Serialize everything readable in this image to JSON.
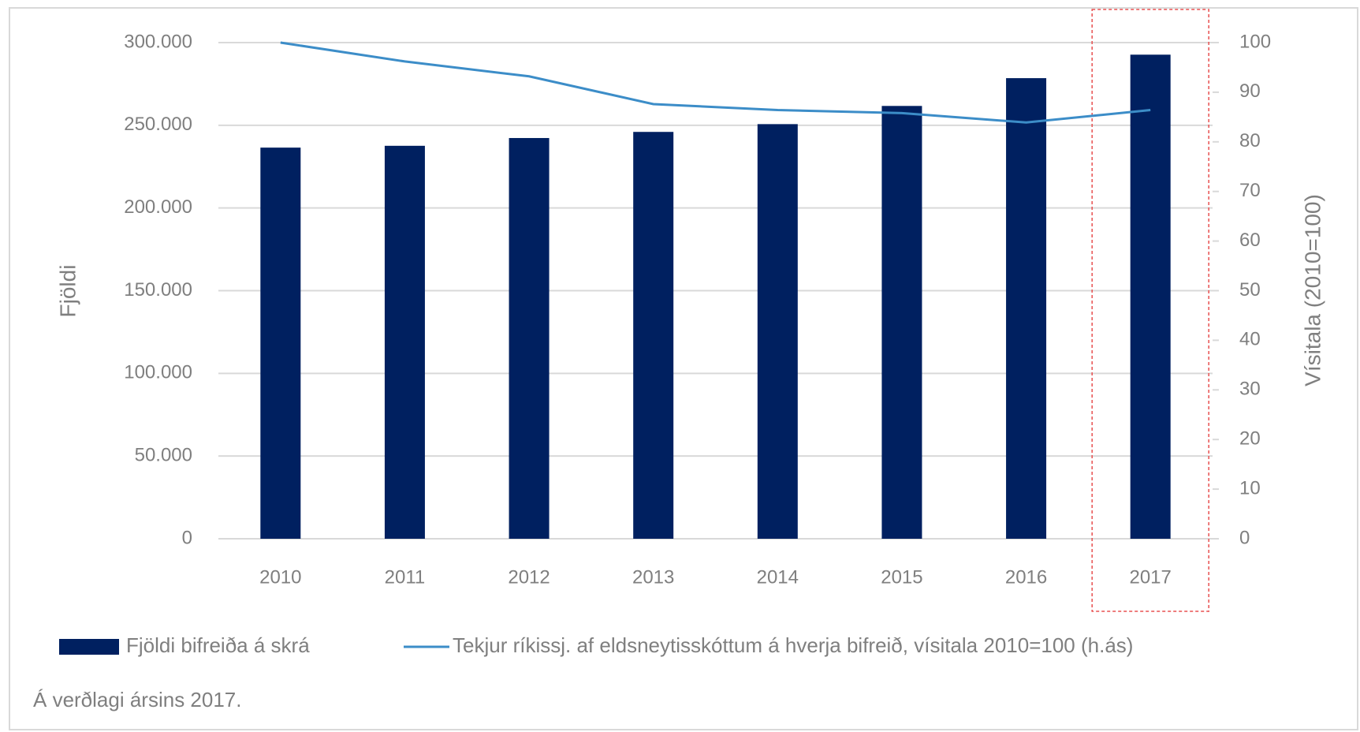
{
  "chart_data": {
    "type": "bar",
    "categories": [
      "2010",
      "2011",
      "2012",
      "2013",
      "2014",
      "2015",
      "2016",
      "2017"
    ],
    "series": [
      {
        "name": "Fjöldi bifreiða á skrá",
        "color": "#002060",
        "type": "bar",
        "values": [
          236500,
          237600,
          242300,
          246000,
          250700,
          261700,
          278500,
          292700
        ]
      },
      {
        "name": "Tekjur ríkissj. af eldsneytisskóttum á hverja bifreið, vísitala 2010=100 (h.ás)",
        "color": "#3c8dc8",
        "type": "line",
        "axis": "y2",
        "values": [
          100,
          96.2,
          93.2,
          87.6,
          86.4,
          85.8,
          83.9,
          86.4
        ]
      }
    ],
    "ylabel": "Fjöldi",
    "y2label": "Vísitala (2010=100)",
    "ylim": [
      0,
      300000
    ],
    "yticks": [
      0,
      {
        "value": 50000,
        "label": "50.000"
      },
      {
        "value": 100000,
        "label": "100.000"
      },
      {
        "value": 150000,
        "label": "150.000"
      },
      {
        "value": 200000,
        "label": "200.000"
      },
      {
        "value": 250000,
        "label": "250.000"
      },
      {
        "value": 300000,
        "label": "300.000"
      }
    ],
    "y2lim": [
      0,
      100
    ],
    "y2ticks": [
      0,
      10,
      20,
      30,
      40,
      50,
      60,
      70,
      80,
      90,
      100
    ],
    "grid": true,
    "legend": "bottom",
    "note": "Á verðlagi ársins 2017."
  }
}
